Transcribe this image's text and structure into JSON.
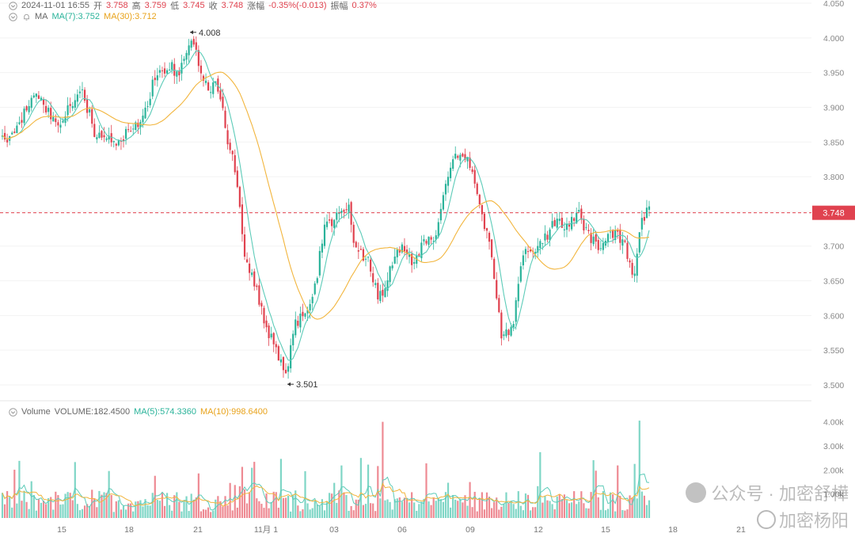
{
  "header": {
    "datetime": "2024-11-01 16:55",
    "open_label": "开",
    "open": "3.758",
    "high_label": "高",
    "high": "3.759",
    "low_label": "低",
    "low": "3.745",
    "close_label": "收",
    "close": "3.748",
    "change_label": "涨幅",
    "change": "-0.35%(-0.013)",
    "amp_label": "振幅",
    "amp": "0.37%"
  },
  "ma_legend": {
    "name": "MA",
    "ma7": "MA(7):3.752",
    "ma30": "MA(30):3.712"
  },
  "vol_legend": {
    "name": "Volume",
    "volume": "VOLUME:182.4500",
    "ma5": "MA(5):574.3360",
    "ma10": "MA(10):998.6400"
  },
  "watermark": {
    "line1": "公众号 · 加密舒樺",
    "line2": "加密杨阳"
  },
  "colors": {
    "up": "#2ab39a",
    "down": "#e0424f",
    "ma7": "#5ccbb8",
    "ma30": "#f2b53d",
    "price_tag": "#e0424f"
  },
  "chart_data": [
    {
      "type": "candlestick",
      "y_ticks": [
        "4.050",
        "4.000",
        "3.950",
        "3.900",
        "3.850",
        "3.800",
        "3.750",
        "3.700",
        "3.650",
        "3.600",
        "3.550",
        "3.500"
      ],
      "ylim": [
        3.48,
        4.055
      ],
      "x_ticks": [
        "15",
        "18",
        "21",
        "11月 1",
        "03",
        "06",
        "09",
        "12",
        "15",
        "18",
        "21"
      ],
      "current_price": "3.748",
      "annotations": [
        {
          "label": "4.008",
          "value": 4.008,
          "kind": "high"
        },
        {
          "label": "3.501",
          "value": 3.501,
          "kind": "low"
        }
      ],
      "close_path": [
        [
          0,
          3.855
        ],
        [
          10,
          3.85
        ],
        [
          25,
          3.87
        ],
        [
          40,
          3.92
        ],
        [
          55,
          3.9
        ],
        [
          70,
          3.875
        ],
        [
          85,
          3.895
        ],
        [
          105,
          3.92
        ],
        [
          120,
          3.86
        ],
        [
          140,
          3.85
        ],
        [
          160,
          3.86
        ],
        [
          180,
          3.88
        ],
        [
          195,
          3.94
        ],
        [
          210,
          3.96
        ],
        [
          225,
          3.95
        ],
        [
          240,
          3.99
        ],
        [
          250,
          3.97
        ],
        [
          260,
          3.93
        ],
        [
          275,
          3.93
        ],
        [
          285,
          3.87
        ],
        [
          298,
          3.8
        ],
        [
          310,
          3.68
        ],
        [
          322,
          3.65
        ],
        [
          335,
          3.58
        ],
        [
          350,
          3.55
        ],
        [
          362,
          3.51
        ],
        [
          372,
          3.59
        ],
        [
          385,
          3.6
        ],
        [
          398,
          3.64
        ],
        [
          410,
          3.73
        ],
        [
          425,
          3.74
        ],
        [
          440,
          3.76
        ],
        [
          450,
          3.69
        ],
        [
          465,
          3.68
        ],
        [
          478,
          3.62
        ],
        [
          490,
          3.66
        ],
        [
          505,
          3.7
        ],
        [
          520,
          3.68
        ],
        [
          535,
          3.7
        ],
        [
          550,
          3.71
        ],
        [
          565,
          3.8
        ],
        [
          580,
          3.84
        ],
        [
          590,
          3.82
        ],
        [
          600,
          3.79
        ],
        [
          612,
          3.73
        ],
        [
          622,
          3.68
        ],
        [
          635,
          3.56
        ],
        [
          648,
          3.59
        ],
        [
          660,
          3.69
        ],
        [
          672,
          3.69
        ],
        [
          688,
          3.71
        ],
        [
          700,
          3.73
        ],
        [
          715,
          3.73
        ],
        [
          730,
          3.75
        ],
        [
          745,
          3.71
        ],
        [
          760,
          3.7
        ],
        [
          775,
          3.72
        ],
        [
          790,
          3.7
        ],
        [
          800,
          3.65
        ],
        [
          810,
          3.74
        ],
        [
          820,
          3.748
        ]
      ],
      "series": [
        {
          "name": "MA(7)",
          "latest": 3.752
        },
        {
          "name": "MA(30)",
          "latest": 3.712
        }
      ]
    },
    {
      "type": "bar",
      "y_ticks": [
        "4.00k",
        "3.00k",
        "2.00k",
        "1.00k"
      ],
      "ylim": [
        0,
        4250
      ],
      "latest_volume": 182.45,
      "ma5_latest": 574.336,
      "ma10_latest": 998.64
    }
  ]
}
